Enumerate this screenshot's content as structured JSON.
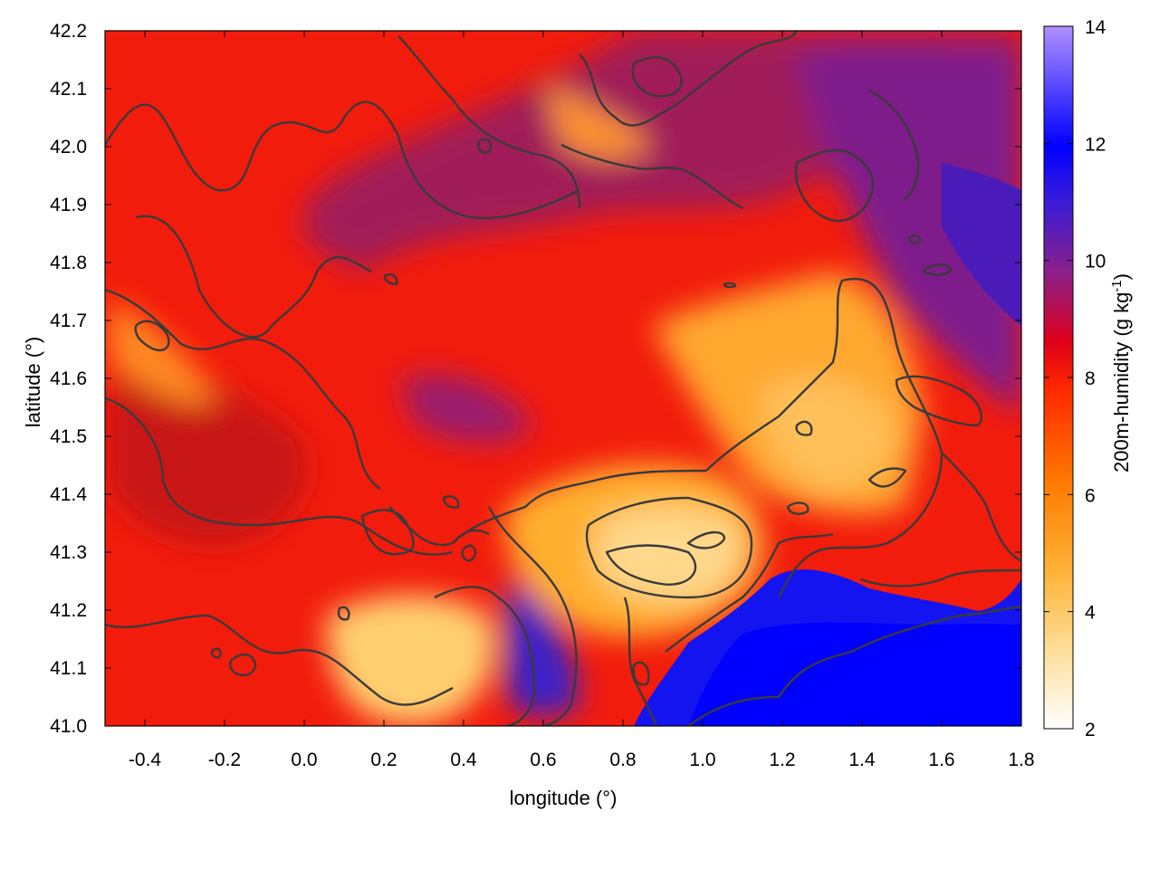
{
  "chart_data": {
    "type": "heatmap",
    "title": "",
    "xlabel": "longitude (°)",
    "ylabel": "latitude (°)",
    "xlim": [
      -0.5,
      1.8
    ],
    "ylim": [
      41.0,
      42.2
    ],
    "x_ticks": [
      "-0.4",
      "-0.2",
      "0.0",
      "0.2",
      "0.4",
      "0.6",
      "0.8",
      "1.0",
      "1.2",
      "1.4",
      "1.6",
      "1.8"
    ],
    "y_ticks": [
      "41.0",
      "41.1",
      "41.2",
      "41.3",
      "41.4",
      "41.5",
      "41.6",
      "41.7",
      "41.8",
      "41.9",
      "42.0",
      "42.1",
      "42.2"
    ],
    "colorbar": {
      "label_main": "200m-humidity (g kg",
      "label_sup": "-1",
      "label_close": ")",
      "range": [
        2,
        14
      ],
      "ticks": [
        "2",
        "4",
        "6",
        "8",
        "10",
        "12",
        "14"
      ],
      "colormap": [
        "#ffffff",
        "#fde2a3",
        "#ffb43a",
        "#ff7a00",
        "#ff2a00",
        "#e00018",
        "#8a1f8a",
        "#3a1cd8",
        "#0000ff",
        "#b090ff"
      ]
    },
    "contours": "overlaid iso-lines in dark gray",
    "field_regions": [
      {
        "region": "north-west",
        "approx_value": 8.3
      },
      {
        "region": "north-east",
        "approx_value": 9.5
      },
      {
        "region": "central dry plateau",
        "approx_value": 4.0
      },
      {
        "region": "south-east sea",
        "approx_value": 11.5
      },
      {
        "region": "south-center valley",
        "approx_value": 3.5
      }
    ]
  }
}
